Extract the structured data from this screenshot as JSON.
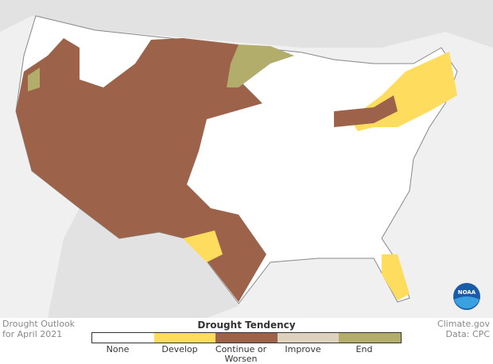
{
  "title_lines": [
    "Drought Outlook",
    "for April 2021"
  ],
  "credit_lines": [
    "Climate.gov",
    "Data: CPC"
  ],
  "legend": {
    "title": "Drought Tendency",
    "items": [
      {
        "label": "None",
        "color": "#ffffff"
      },
      {
        "label": "Develop",
        "color": "#fedc5e"
      },
      {
        "label": "Continue or Worsen",
        "color": "#9c634a"
      },
      {
        "label": "Improve",
        "color": "#ddd2bd"
      },
      {
        "label": "End",
        "color": "#b2ad6b"
      }
    ]
  },
  "logo": "NOAA"
}
